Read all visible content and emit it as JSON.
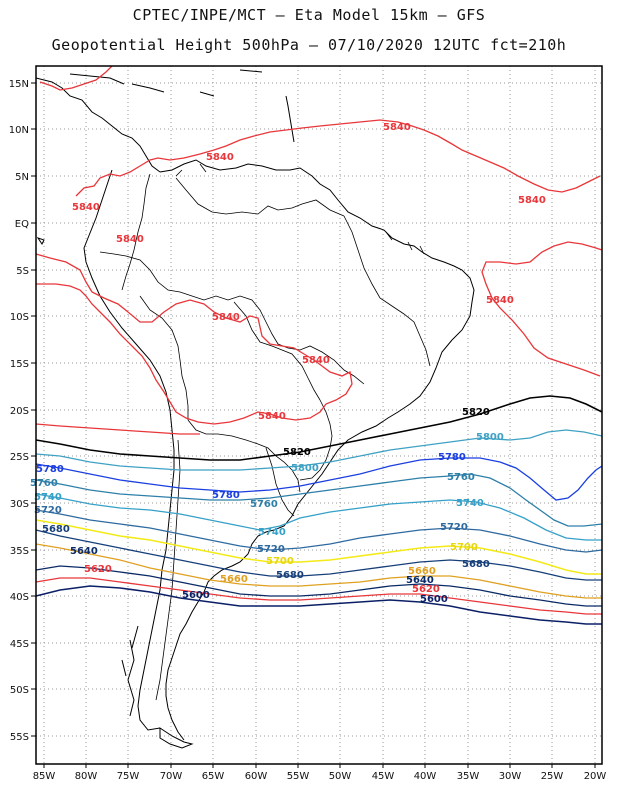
{
  "header": {
    "line1": "CPTEC/INPE/MCT –  Eta Model 15km – GFS",
    "line2": "Geopotential Height 500hPa – 07/10/2020 12UTC fct=210h"
  },
  "axes": {
    "lat_labels": [
      "15N",
      "10N",
      "5N",
      "EQ",
      "5S",
      "10S",
      "15S",
      "20S",
      "25S",
      "30S",
      "35S",
      "40S",
      "45S",
      "50S",
      "55S"
    ],
    "lon_labels": [
      "85W",
      "80W",
      "75W",
      "70W",
      "65W",
      "60W",
      "55W",
      "50W",
      "45W",
      "40W",
      "35W",
      "30W",
      "25W",
      "20W"
    ]
  },
  "contours": [
    {
      "value": "5840",
      "color": "#e8363a"
    },
    {
      "value": "5820",
      "color": "#000000"
    },
    {
      "value": "5800",
      "color": "#3fa1c4"
    },
    {
      "value": "5780",
      "color": "#1b3fe0"
    },
    {
      "value": "5760",
      "color": "#2d7fa8"
    },
    {
      "value": "5740",
      "color": "#35a0c8"
    },
    {
      "value": "5720",
      "color": "#2e6aa0"
    },
    {
      "value": "5700",
      "color": "#f3ea16"
    },
    {
      "value": "5680",
      "color": "#163f7a"
    },
    {
      "value": "5660",
      "color": "#e0a020"
    },
    {
      "value": "5640",
      "color": "#0a2a66"
    },
    {
      "value": "5620",
      "color": "#e8363a"
    },
    {
      "value": "5600",
      "color": "#0a1f66"
    }
  ]
}
